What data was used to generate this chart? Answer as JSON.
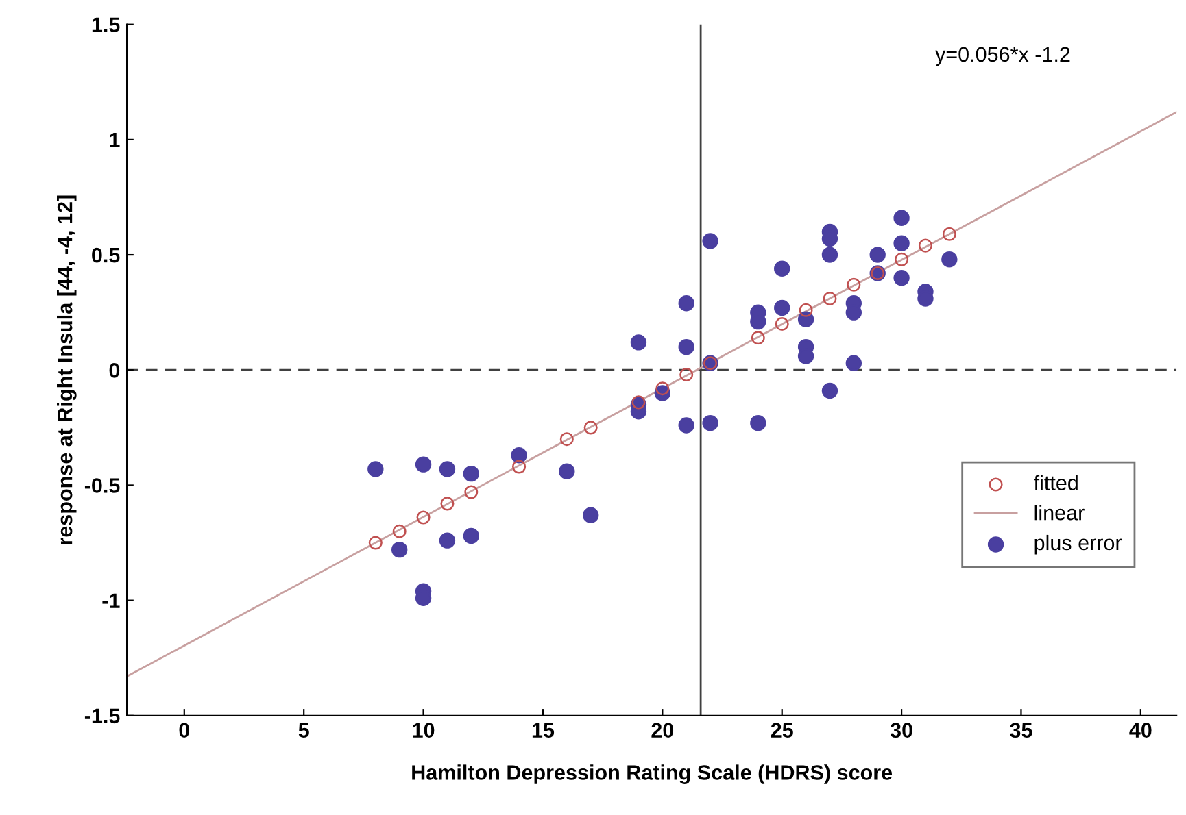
{
  "chart_data": {
    "type": "scatter",
    "xlabel": "Hamilton Depression Rating Scale (HDRS) score",
    "ylabel": "response at Right Insula [44, -4, 12]",
    "xlim": [
      -2.4,
      41.5
    ],
    "xticks": [
      0,
      5,
      10,
      15,
      20,
      25,
      30,
      35,
      40
    ],
    "ylim": [
      -1.5,
      1.5
    ],
    "yticks": [
      -1.5,
      -1,
      -0.5,
      0,
      0.5,
      1,
      1.5
    ],
    "grid": false,
    "legend": "bottom right",
    "series": [
      {
        "name": "fitted",
        "marker": "circle",
        "color": "#c05050",
        "x": [
          8,
          9,
          10,
          11,
          12,
          14,
          16,
          17,
          19,
          20,
          21,
          22,
          24,
          25,
          26,
          27,
          28,
          29,
          30,
          31,
          32
        ],
        "values": [
          -0.75,
          -0.7,
          -0.64,
          -0.58,
          -0.53,
          -0.42,
          -0.3,
          -0.25,
          -0.14,
          -0.08,
          -0.02,
          0.03,
          0.14,
          0.2,
          0.26,
          0.31,
          0.37,
          0.42,
          0.48,
          0.54,
          0.59
        ]
      },
      {
        "name": "linear",
        "type": "line",
        "marker": "none",
        "line_style": "solid",
        "color": "#c8a0a0",
        "x": [
          -2.4,
          41.5
        ],
        "values": [
          -1.33,
          1.12
        ]
      },
      {
        "name": "plus error",
        "marker": "circle",
        "color": "#4a3fa0",
        "x": [
          8,
          9,
          10,
          10,
          10,
          11,
          11,
          12,
          12,
          14,
          16,
          17,
          19,
          19,
          19,
          20,
          21,
          21,
          21,
          22,
          22,
          22,
          24,
          24,
          24,
          25,
          25,
          26,
          26,
          26,
          27,
          27,
          27,
          27,
          28,
          28,
          28,
          29,
          29,
          30,
          30,
          30,
          31,
          31,
          32
        ],
        "values": [
          -0.43,
          -0.78,
          -0.41,
          -0.96,
          -0.99,
          -0.43,
          -0.74,
          -0.45,
          -0.72,
          -0.37,
          -0.44,
          -0.63,
          0.12,
          -0.15,
          -0.18,
          -0.1,
          0.29,
          0.1,
          -0.24,
          0.56,
          0.03,
          -0.23,
          0.25,
          0.21,
          -0.23,
          0.44,
          0.27,
          0.22,
          0.1,
          0.06,
          0.6,
          0.57,
          0.5,
          -0.09,
          0.29,
          0.25,
          0.03,
          0.5,
          0.42,
          0.66,
          0.55,
          0.4,
          0.34,
          0.31,
          0.48
        ]
      }
    ],
    "ref_lines": [
      {
        "axis": "y",
        "value": 0,
        "label": null,
        "color": "#404040",
        "line_style": "dashed"
      },
      {
        "axis": "x",
        "value": 21.6,
        "label": null,
        "color": "#404040",
        "line_style": "solid"
      }
    ],
    "annotations": [
      "y=0.056*x -1.2"
    ]
  }
}
